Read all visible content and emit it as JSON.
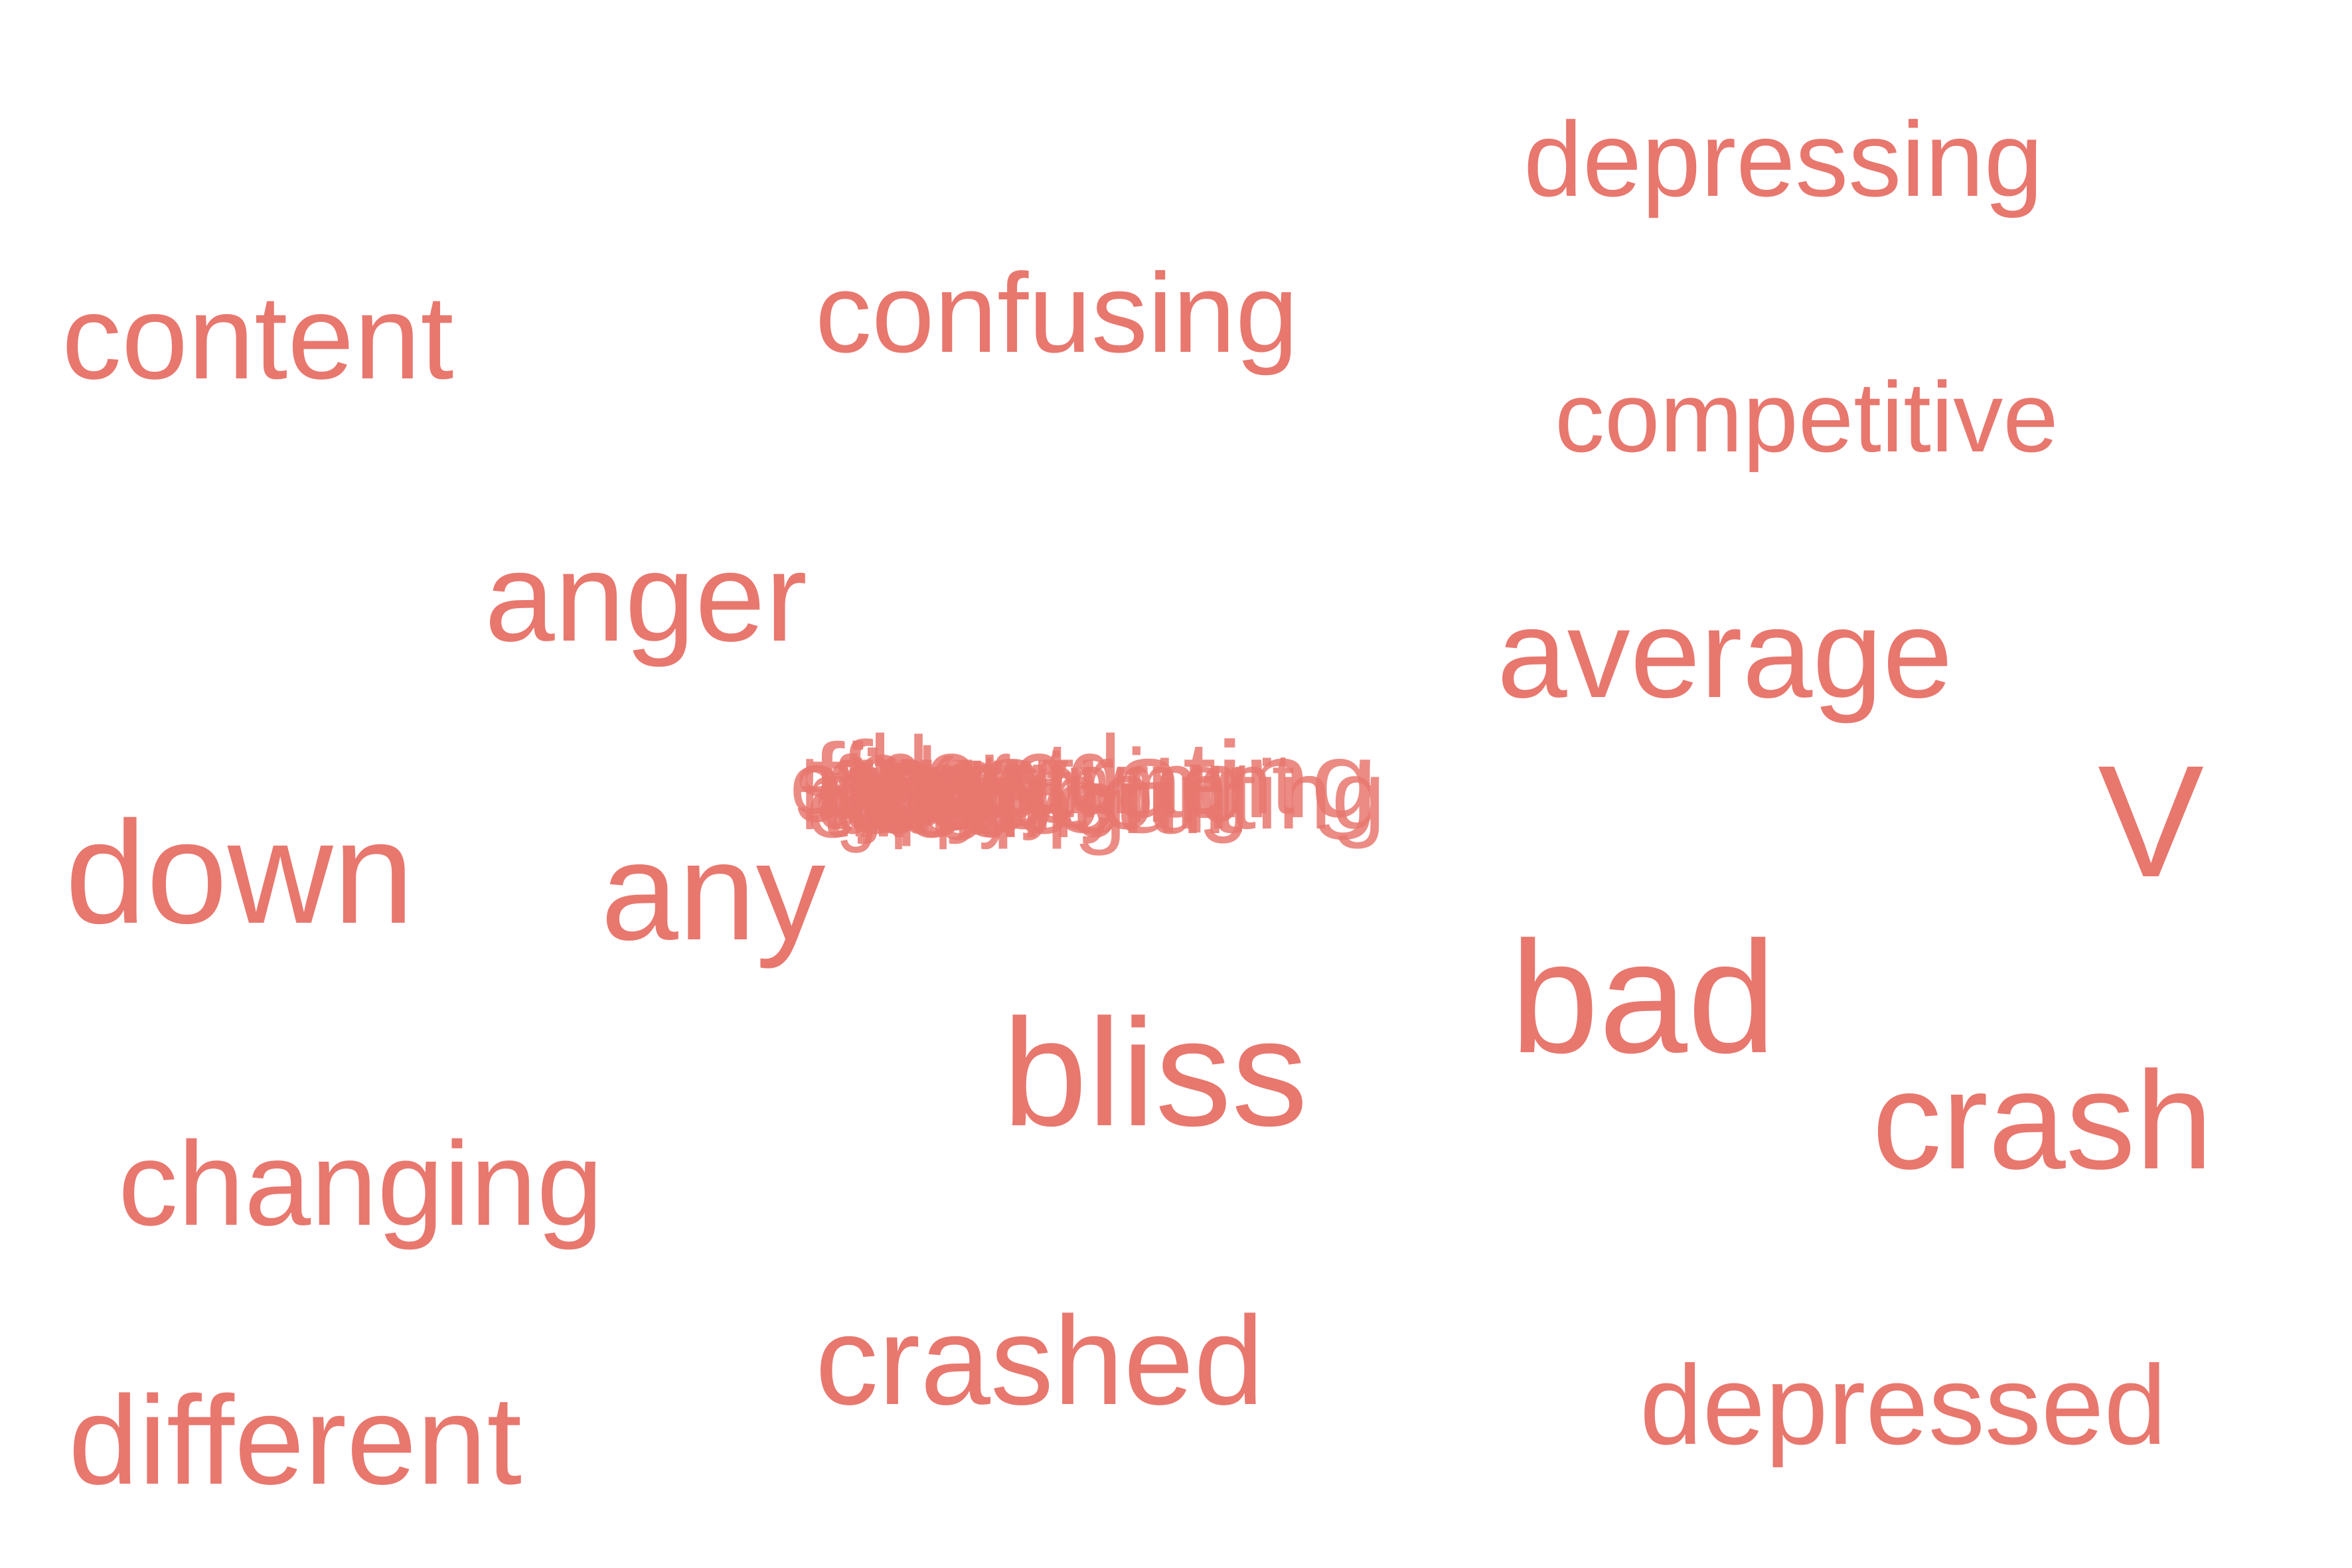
{
  "chart_data": {
    "type": "wordcloud",
    "color": "#E8776E",
    "words": [
      {
        "text": "depressing"
      },
      {
        "text": "content"
      },
      {
        "text": "confusing"
      },
      {
        "text": "competitive"
      },
      {
        "text": "anger"
      },
      {
        "text": "average"
      },
      {
        "text": "V"
      },
      {
        "text": "down"
      },
      {
        "text": "any"
      },
      {
        "text": "bad"
      },
      {
        "text": "bliss"
      },
      {
        "text": "crash"
      },
      {
        "text": "changing"
      },
      {
        "text": "crashed"
      },
      {
        "text": "depressed"
      },
      {
        "text": "different"
      }
    ],
    "overlap_cluster": {
      "words": [
        "entertainment",
        "disappointing",
        "frustrating",
        "difficult",
        "sad",
        "tired",
        "upset",
        "bored",
        "happy",
        "angry",
        "stressful",
        "annoying",
        "exciting",
        "fun",
        "ok",
        "cool",
        "fine",
        "good",
        "joy"
      ],
      "color": "#E8776E"
    }
  }
}
